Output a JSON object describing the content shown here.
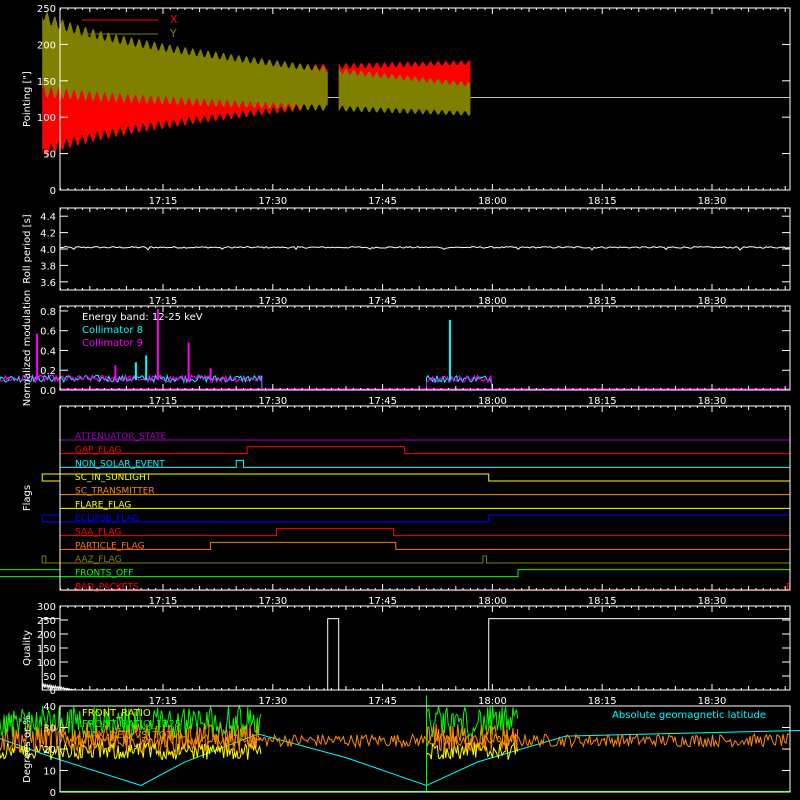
{
  "colors": {
    "background": "#000000",
    "axis": "#ffffff",
    "red": "#ff0000",
    "olive": "#808000",
    "cyan": "#00ffff",
    "magenta": "#ff00ff",
    "white": "#ffffff",
    "green": "#00ff00",
    "orange": "#ff8c00",
    "yellow": "#ffff00",
    "blue": "#0000ff",
    "purple": "#a000c0",
    "brightorange": "#ff7700"
  },
  "time_axis": {
    "range_min": [
      1050,
      1612
    ],
    "ticks_min": [
      1035,
      1050,
      1065,
      1080,
      1095,
      1110
    ],
    "tick_labels": [
      "17:15",
      "17:30",
      "17:45",
      "18:00",
      "18:15",
      "18:30"
    ]
  },
  "chart_data": [
    {
      "id": "pointing",
      "type": "area",
      "ylabel": "Pointing [\"]",
      "ylim": [
        0,
        250
      ],
      "yticks": [
        0,
        50,
        100,
        150,
        200,
        250
      ],
      "legend": [
        {
          "label": "X",
          "color": "#ff0000"
        },
        {
          "label": "Y",
          "color": "#808000"
        }
      ],
      "baseline_value": 127,
      "segments": [
        [
          1018.5,
          1057.5
        ],
        [
          1059,
          1077
        ]
      ],
      "series": [
        {
          "name": "X",
          "center_start": 100,
          "center_end": 155,
          "amp_start": 55,
          "amp_end": 20
        },
        {
          "name": "Y",
          "center_start": 190,
          "center_end": 125,
          "amp_start": 55,
          "amp_end": 20
        }
      ]
    },
    {
      "id": "roll_period",
      "type": "line",
      "ylabel": "Roll period [s]",
      "ylim": [
        3.5,
        4.5
      ],
      "yticks": [
        3.6,
        3.8,
        4.0,
        4.2,
        4.4
      ],
      "yticklabels": [
        "3.6",
        "3.8",
        "4.0",
        "4.2",
        "4.4"
      ],
      "value": 4.02
    },
    {
      "id": "modulation",
      "type": "line",
      "ylabel": "Normalized modulation",
      "ylim": [
        0,
        0.85
      ],
      "yticks": [
        0.0,
        0.2,
        0.4,
        0.6,
        0.8
      ],
      "yticklabels": [
        "0.0",
        "0.2",
        "0.4",
        "0.6",
        "0.8"
      ],
      "legend": [
        {
          "label": "Energy band: 12-25 keV",
          "color": "#ffffff"
        },
        {
          "label": "Collimator 8",
          "color": "#00ffff"
        },
        {
          "label": "Collimator 9",
          "color": "#ff00ff"
        }
      ],
      "segments": [
        [
          1011,
          1048.5
        ],
        [
          1071,
          1080
        ]
      ],
      "spikes": [
        {
          "x": 1017.8,
          "y": 0.57,
          "series": "Collimator 9"
        },
        {
          "x": 1028.5,
          "y": 0.25,
          "series": "Collimator 9"
        },
        {
          "x": 1031.3,
          "y": 0.28,
          "series": "Collimator 8"
        },
        {
          "x": 1032.7,
          "y": 0.35,
          "series": "Collimator 8"
        },
        {
          "x": 1034.3,
          "y": 0.82,
          "series": "Collimator 9"
        },
        {
          "x": 1038.5,
          "y": 0.48,
          "series": "Collimator 9"
        },
        {
          "x": 1041.5,
          "y": 0.22,
          "series": "Collimator 9"
        },
        {
          "x": 1074.2,
          "y": 0.71,
          "series": "Collimator 8"
        }
      ]
    },
    {
      "id": "flags",
      "type": "line",
      "ylabel": "Flags",
      "rows": [
        {
          "label": "ATTENUATOR_STATE",
          "color": "#a000c0",
          "transitions": []
        },
        {
          "label": "GAP_FLAG",
          "color": "#ff0000",
          "transitions": [
            1046.5,
            1068
          ]
        },
        {
          "label": "NON_SOLAR_EVENT",
          "color": "#00ffff",
          "transitions": [
            1045,
            1046
          ]
        },
        {
          "label": "SC_IN_SUNLIGHT",
          "color": "#ffff00",
          "transitions": [
            1018.5,
            1079.5
          ]
        },
        {
          "label": "SC_TRANSMITTER",
          "color": "#ff8c00",
          "transitions": []
        },
        {
          "label": "FLARE_FLAG",
          "color": "#ffff00",
          "transitions": []
        },
        {
          "label": "ECLIPSE_FLAG",
          "color": "#0000ff",
          "transitions": [
            1018.5,
            1079.5
          ],
          "start_high": true
        },
        {
          "label": "SAA_FLAG",
          "color": "#ff0000",
          "transitions": [
            1050.5,
            1066.5
          ]
        },
        {
          "label": "PARTICLE_FLAG",
          "color": "#ff7700",
          "transitions": [
            1041.5,
            1066.8
          ]
        },
        {
          "label": "AAZ_FLAG",
          "color": "#808000",
          "transitions": [
            1018.5,
            1019,
            1078.7,
            1079.2
          ]
        },
        {
          "label": "FRONTS_OFF",
          "color": "#00ff00",
          "transitions": [
            1011,
            1083.5
          ],
          "start_high": true
        },
        {
          "label": "BAD_PACKETS",
          "color": "#ff0000",
          "transitions": [
            1120.3,
            1120.6
          ]
        }
      ]
    },
    {
      "id": "quality",
      "type": "line",
      "ylabel": "Quality",
      "ylim": [
        0,
        300
      ],
      "yticks": [
        0,
        50,
        100,
        150,
        200,
        250,
        300
      ],
      "high_value": 255,
      "high_segments": [
        [
          1008,
          1018.5
        ],
        [
          1057.5,
          1059
        ],
        [
          1079.5,
          1127
        ]
      ],
      "decay_start": 1018.5,
      "decay_end": 1023
    },
    {
      "id": "ratios",
      "type": "line",
      "ylabel": "Degrees or %",
      "ylim": [
        0,
        40
      ],
      "yticks": [
        0,
        10,
        20,
        30,
        40
      ],
      "legend_left": [
        {
          "label": "FRONT_RATIO",
          "color": "#ffff00"
        },
        {
          "label": "FRONT_RATIO_1225",
          "color": "#00ff00"
        },
        {
          "label": "MAX_DET_VS_TOT",
          "color": "#ff8c00"
        }
      ],
      "legend_right": {
        "label": "Absolute geomagnetic latitude",
        "color": "#00ffff"
      },
      "active_segments": [
        [
          1011,
          1048.5
        ],
        [
          1071,
          1083.5
        ]
      ],
      "latitude": [
        [
          1008,
          25
        ],
        [
          1011,
          27
        ],
        [
          1020,
          16
        ],
        [
          1032,
          3
        ],
        [
          1038,
          14
        ],
        [
          1048,
          27
        ],
        [
          1060,
          16
        ],
        [
          1071,
          3
        ],
        [
          1078,
          14
        ],
        [
          1090,
          26
        ],
        [
          1127,
          29
        ]
      ]
    }
  ]
}
